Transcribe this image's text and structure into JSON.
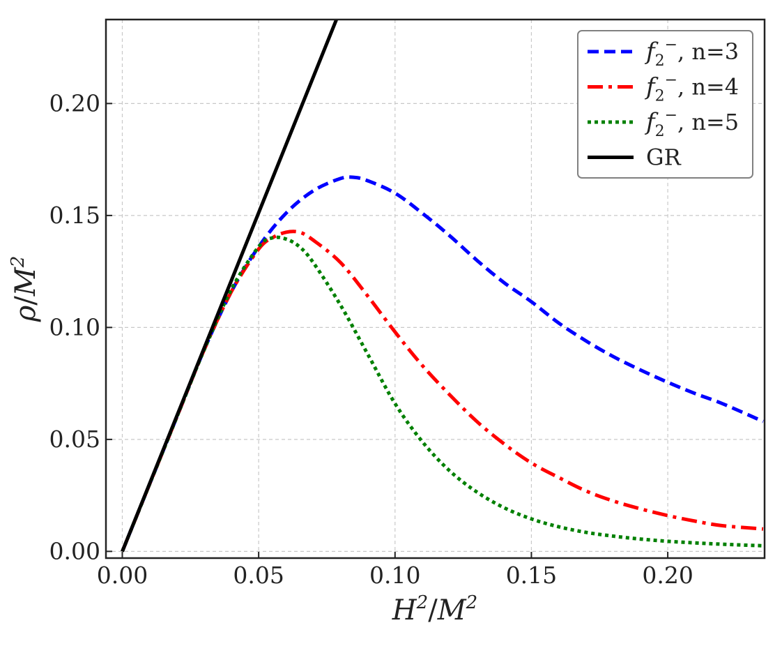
{
  "chart_data": {
    "type": "line",
    "xlabel": {
      "base": "H",
      "exp": "2",
      "sep": "/",
      "base2": "M",
      "exp2": "2"
    },
    "ylabel": {
      "base": "ρ",
      "sep": "/",
      "base2": "M",
      "exp2": "2"
    },
    "xlim": [
      -0.006,
      0.2355
    ],
    "ylim": [
      -0.003,
      0.2375
    ],
    "xticks": [
      0.0,
      0.05,
      0.1,
      0.15,
      0.2
    ],
    "yticks": [
      0.0,
      0.05,
      0.1,
      0.15,
      0.2
    ],
    "xtick_labels": [
      "0.00",
      "0.05",
      "0.10",
      "0.15",
      "0.20"
    ],
    "ytick_labels": [
      "0.00",
      "0.05",
      "0.10",
      "0.15",
      "0.20"
    ],
    "grid": true,
    "legend_position": "top-right",
    "series": [
      {
        "label_fn": "f",
        "label_sub": "2",
        "label_sup": "−",
        "label_suffix": ", n=3",
        "color": "#0000ff",
        "style": "dashed",
        "x": [
          0.0,
          0.01,
          0.02,
          0.03,
          0.04,
          0.05,
          0.06,
          0.07,
          0.08,
          0.085,
          0.09,
          0.1,
          0.11,
          0.12,
          0.13,
          0.14,
          0.15,
          0.16,
          0.17,
          0.18,
          0.19,
          0.2,
          0.21,
          0.22,
          0.235
        ],
        "y": [
          0.0,
          0.03,
          0.06,
          0.09,
          0.116,
          0.136,
          0.151,
          0.161,
          0.1665,
          0.167,
          0.1655,
          0.16,
          0.151,
          0.141,
          0.13,
          0.12,
          0.1115,
          0.102,
          0.094,
          0.087,
          0.081,
          0.0755,
          0.0705,
          0.066,
          0.058
        ]
      },
      {
        "label_fn": "f",
        "label_sub": "2",
        "label_sup": "−",
        "label_suffix": ", n=4",
        "color": "#ff0000",
        "style": "dashdot",
        "x": [
          0.0,
          0.01,
          0.02,
          0.03,
          0.04,
          0.05,
          0.055,
          0.06,
          0.065,
          0.07,
          0.08,
          0.09,
          0.1,
          0.11,
          0.12,
          0.13,
          0.14,
          0.15,
          0.16,
          0.17,
          0.18,
          0.19,
          0.2,
          0.21,
          0.22,
          0.235
        ],
        "y": [
          0.0,
          0.03,
          0.06,
          0.09,
          0.116,
          0.135,
          0.14,
          0.1425,
          0.1425,
          0.139,
          0.129,
          0.114,
          0.098,
          0.083,
          0.07,
          0.058,
          0.048,
          0.0395,
          0.033,
          0.027,
          0.0225,
          0.019,
          0.016,
          0.0135,
          0.0115,
          0.01
        ]
      },
      {
        "label_fn": "f",
        "label_sub": "2",
        "label_sup": "−",
        "label_suffix": ", n=5",
        "color": "#008000",
        "style": "dotted",
        "x": [
          0.0,
          0.01,
          0.02,
          0.03,
          0.04,
          0.05,
          0.055,
          0.06,
          0.065,
          0.07,
          0.08,
          0.09,
          0.1,
          0.11,
          0.12,
          0.13,
          0.14,
          0.15,
          0.16,
          0.17,
          0.18,
          0.19,
          0.2,
          0.21,
          0.22,
          0.235
        ],
        "y": [
          0.0,
          0.03,
          0.06,
          0.09,
          0.117,
          0.136,
          0.14,
          0.1395,
          0.136,
          0.129,
          0.11,
          0.088,
          0.066,
          0.049,
          0.036,
          0.0265,
          0.0195,
          0.0145,
          0.011,
          0.0085,
          0.0068,
          0.0055,
          0.0045,
          0.0038,
          0.0032,
          0.0025
        ]
      },
      {
        "label_fn": "",
        "label_sub": "",
        "label_sup": "",
        "label_suffix": "GR",
        "color": "#000000",
        "style": "solid",
        "x": [
          0.0,
          0.0785
        ],
        "y": [
          0.0,
          0.2375
        ]
      }
    ]
  }
}
